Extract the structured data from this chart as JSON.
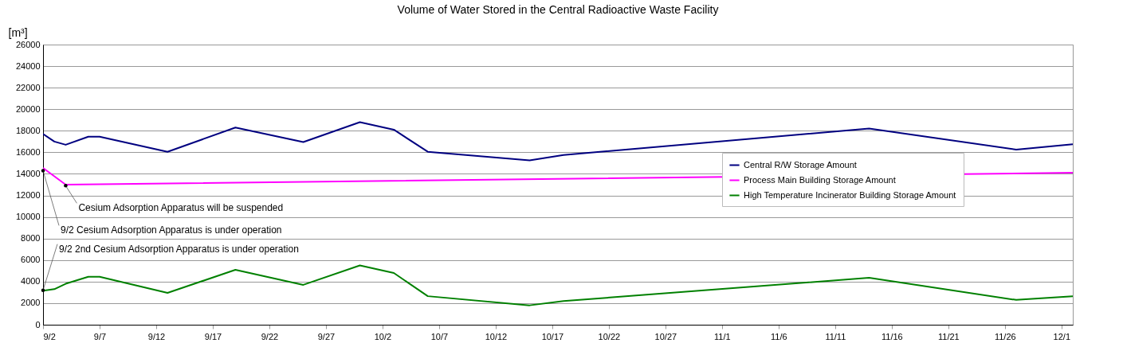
{
  "chart_data": {
    "type": "line",
    "title": "Volume of Water Stored in the Central Radioactive Waste Facility",
    "ylabel": "[m³]",
    "xlim": [
      "--09-02",
      "--12-02"
    ],
    "xticks": [
      {
        "value": "--09-02",
        "label": "9/2"
      },
      {
        "value": "--09-07",
        "label": "9/7"
      },
      {
        "value": "--09-12",
        "label": "9/12"
      },
      {
        "value": "--09-17",
        "label": "9/17"
      },
      {
        "value": "--09-22",
        "label": "9/22"
      },
      {
        "value": "--09-27",
        "label": "9/27"
      },
      {
        "value": "--10-02",
        "label": "10/2"
      },
      {
        "value": "--10-07",
        "label": "10/7"
      },
      {
        "value": "--10-12",
        "label": "10/12"
      },
      {
        "value": "--10-17",
        "label": "10/17"
      },
      {
        "value": "--10-22",
        "label": "10/22"
      },
      {
        "value": "--10-27",
        "label": "10/27"
      },
      {
        "value": "--11-01",
        "label": "11/1"
      },
      {
        "value": "--11-06",
        "label": "11/6"
      },
      {
        "value": "--11-11",
        "label": "11/11"
      },
      {
        "value": "--11-16",
        "label": "11/16"
      },
      {
        "value": "--11-21",
        "label": "11/21"
      },
      {
        "value": "--11-26",
        "label": "11/26"
      },
      {
        "value": "--12-01",
        "label": "12/1"
      }
    ],
    "ylim": [
      0,
      26000
    ],
    "yticks": [
      0,
      2000,
      4000,
      6000,
      8000,
      10000,
      12000,
      14000,
      16000,
      18000,
      20000,
      22000,
      24000,
      26000
    ],
    "x": [
      "--09-02",
      "--09-03",
      "--09-04",
      "--09-06",
      "--09-07",
      "--09-13",
      "--09-19",
      "--09-25",
      "--09-30",
      "--10-03",
      "--10-06",
      "--10-15",
      "--10-18",
      "--11-14",
      "--11-27",
      "--12-02"
    ],
    "series": [
      {
        "name": "Central R/W Storage Amount",
        "color": "#000080",
        "values": [
          17700,
          17000,
          16700,
          17450,
          17450,
          16050,
          18300,
          16950,
          18800,
          18100,
          16050,
          15250,
          15750,
          18200,
          16250,
          16750
        ]
      },
      {
        "name": "Process Main Building Storage Amount",
        "color": "#ff00ff",
        "x": [
          "--09-02",
          "--09-04",
          "--12-02"
        ],
        "values": [
          14550,
          13000,
          14100
        ]
      },
      {
        "name": "High Temperature Incinerator Building Storage Amount",
        "color": "#008000",
        "values": [
          3150,
          3300,
          3800,
          4450,
          4450,
          2950,
          5100,
          3700,
          5500,
          4800,
          2650,
          1800,
          2200,
          4350,
          2300,
          2650
        ]
      }
    ],
    "annotations": [
      {
        "text": "Cesium Adsorption Apparatus will be suspended",
        "x": "--09-04",
        "y": 12900
      },
      {
        "text": "9/2 Cesium Adsorption Apparatus is under operation",
        "x": "--09-02",
        "y": 14300
      },
      {
        "text": "9/2 2nd Cesium Adsorption Apparatus is under operation",
        "x": "--09-02",
        "y": 3200
      }
    ],
    "grid": "y",
    "legend": "right",
    "line_style": "solid",
    "marker": "none"
  }
}
